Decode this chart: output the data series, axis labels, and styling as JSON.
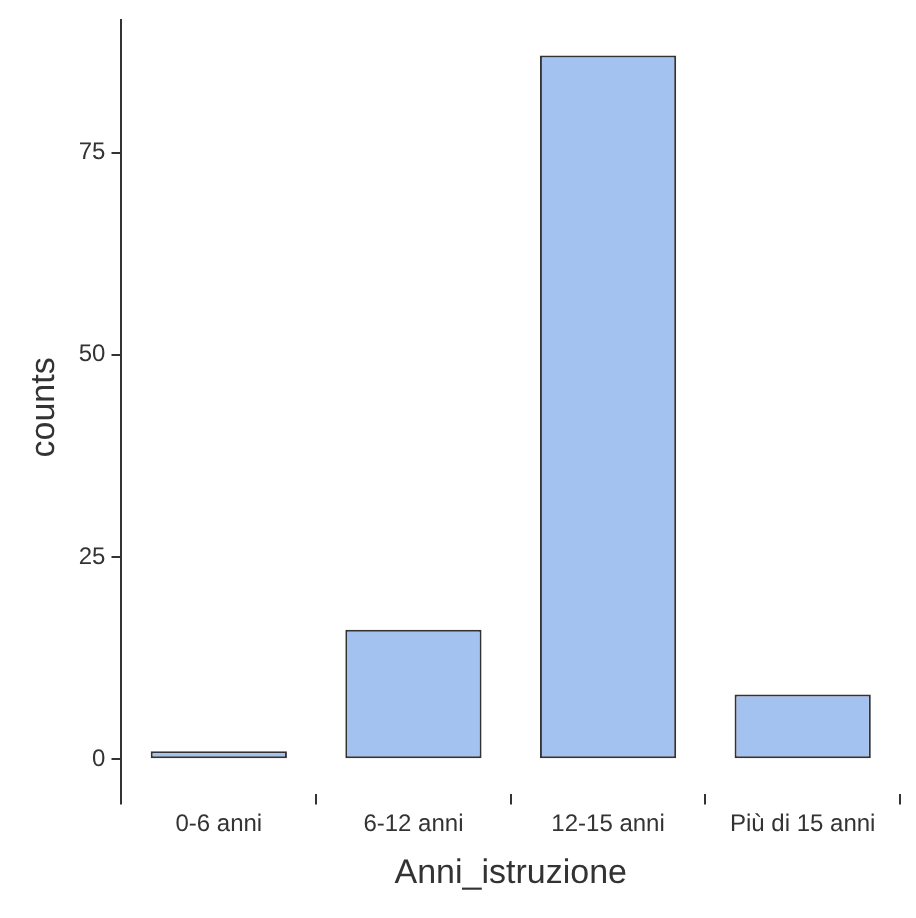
{
  "chart_data": {
    "type": "bar",
    "xlabel": "Anni_istruzione",
    "ylabel": "counts",
    "categories": [
      "0-6 anni",
      "6-12 anni",
      "12-15 anni",
      "Più di 15 anni"
    ],
    "values": [
      1,
      16,
      87,
      8
    ],
    "color": "#a4c2f0",
    "ylim": [
      -4.35,
      91.35
    ],
    "yticks": [
      0,
      25,
      50,
      75
    ],
    "grid": false,
    "legend": false
  }
}
